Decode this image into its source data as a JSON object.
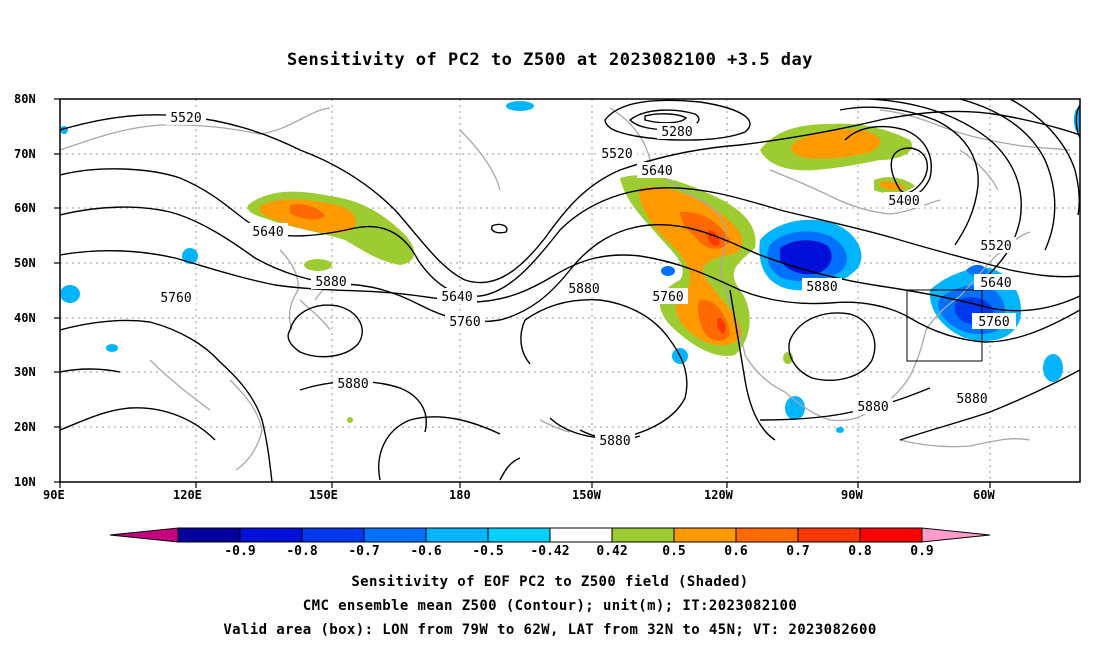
{
  "title": "Sensitivity of PC2 to Z500 at 2023082100 +3.5 day",
  "lat_labels": [
    "80N",
    "70N",
    "60N",
    "50N",
    "40N",
    "30N",
    "20N",
    "10N"
  ],
  "lon_labels": [
    "90E",
    "120E",
    "150E",
    "180",
    "150W",
    "120W",
    "90W",
    "60W"
  ],
  "contour_labels": [
    "5520",
    "5280",
    "5520",
    "5640",
    "5400",
    "5520",
    "5640",
    "5760",
    "5880",
    "5640",
    "5760",
    "5880",
    "5760",
    "5880",
    "5640",
    "5760",
    "5880",
    "5880",
    "5880",
    "5880"
  ],
  "colorbar": {
    "labels": [
      "-0.9",
      "-0.8",
      "-0.7",
      "-0.6",
      "-0.5",
      "-0.42",
      "0.42",
      "0.5",
      "0.6",
      "0.7",
      "0.8",
      "0.9"
    ],
    "colors": [
      "#c4007f",
      "#00009e",
      "#0010d8",
      "#0038f0",
      "#0070ff",
      "#00b4ff",
      "#00d0ff",
      "#ffffff",
      "#9ccc32",
      "#ff9a00",
      "#ff6a00",
      "#ff3800",
      "#ff0000",
      "#ff9ccc"
    ]
  },
  "valid_box": {
    "lon_from": "79W",
    "lon_to": "62W",
    "lat_from": "32N",
    "lat_to": "45N"
  },
  "captions": [
    "Sensitivity of EOF PC2 to Z500 field (Shaded)",
    "CMC ensemble mean Z500 (Contour); unit(m); IT:2023082100",
    "Valid area (box): LON from 79W to 62W, LAT from 32N to 45N; VT: 2023082600"
  ],
  "colors": {
    "positive_shading": "#ff9a00",
    "negative_shading": "#0038f0",
    "coastline": "#a8a8a8",
    "contour": "#000000"
  }
}
